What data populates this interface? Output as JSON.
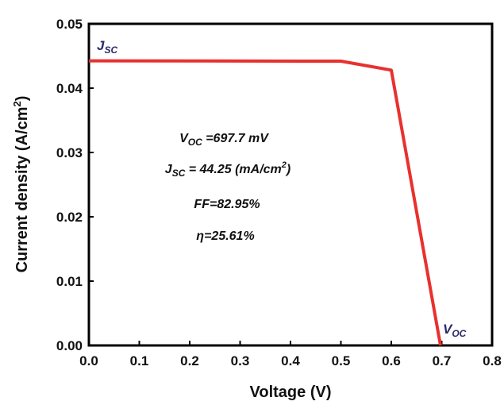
{
  "chart_data": {
    "type": "line",
    "xlabel": "Voltage (V)",
    "ylabel_main": "Current density (A/cm",
    "ylabel_sup": "2",
    "ylabel_end": ")",
    "xlim": [
      0.0,
      0.8
    ],
    "ylim": [
      0.0,
      0.05
    ],
    "x_ticks": [
      0.0,
      0.1,
      0.2,
      0.3,
      0.4,
      0.5,
      0.6,
      0.7,
      0.8
    ],
    "x_tick_labels": [
      "0.0",
      "0.1",
      "0.2",
      "0.3",
      "0.4",
      "0.5",
      "0.6",
      "0.7",
      "0.8"
    ],
    "y_ticks": [
      0.0,
      0.01,
      0.02,
      0.03,
      0.04,
      0.05
    ],
    "y_tick_labels": [
      "0.00",
      "0.01",
      "0.02",
      "0.03",
      "0.04",
      "0.05"
    ],
    "grid": false,
    "legend": "none",
    "series": [
      {
        "color": "#e8312f",
        "x": [
          0.0,
          0.5,
          0.6,
          0.6977
        ],
        "y": [
          0.04425,
          0.0442,
          0.0428,
          0.0
        ]
      }
    ],
    "curve_labels": {
      "jsc": {
        "main": "J",
        "sub": "SC"
      },
      "voc": {
        "main": "V",
        "sub": "OC"
      },
      "color": "#2c2a6b"
    },
    "annotations": {
      "voc_line": {
        "main": "V",
        "sub": "OC",
        "rest": " =697.7 mV"
      },
      "jsc_line": {
        "main": "J",
        "sub": "SC",
        "rest": " = 44.25 (mA/cm",
        "sup": "2",
        "end": ")"
      },
      "ff_line": "FF=82.95%",
      "eta_line": "η=25.61%"
    }
  }
}
